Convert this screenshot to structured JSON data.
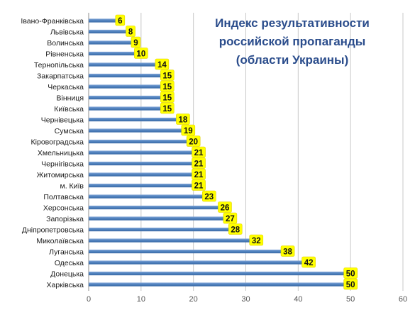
{
  "chart_data": {
    "type": "bar",
    "orientation": "horizontal",
    "title_lines": [
      "Индекс результативности",
      "российской пропаганды",
      "(области Украины)"
    ],
    "categories": [
      "Івано-Франківська",
      "Львівська",
      "Волинська",
      "Рівненська",
      "Тернопільська",
      "Закарпатська",
      "Черкаська",
      "Вінниця",
      "Київська",
      "Чернівецька",
      "Сумська",
      "Кіровоградська",
      "Хмельницька",
      "Чернігівська",
      "Житомирська",
      "м. Київ",
      "Полтавська",
      "Херсонська",
      "Запорізька",
      "Дніпропетровська",
      "Миколаївська",
      "Луганська",
      "Одеська",
      "Донецька",
      "Харківська"
    ],
    "values": [
      6,
      8,
      9,
      10,
      14,
      15,
      15,
      15,
      15,
      18,
      19,
      20,
      21,
      21,
      21,
      21,
      23,
      26,
      27,
      28,
      32,
      38,
      42,
      50,
      50
    ],
    "xlim": [
      0,
      60
    ],
    "xticks": [
      0,
      10,
      20,
      30,
      40,
      50,
      60
    ],
    "grid": true,
    "legend": "none",
    "bar_color": "#4f81bd",
    "label_bg_color": "#ffff00",
    "title_color": "#2b4d8c"
  }
}
